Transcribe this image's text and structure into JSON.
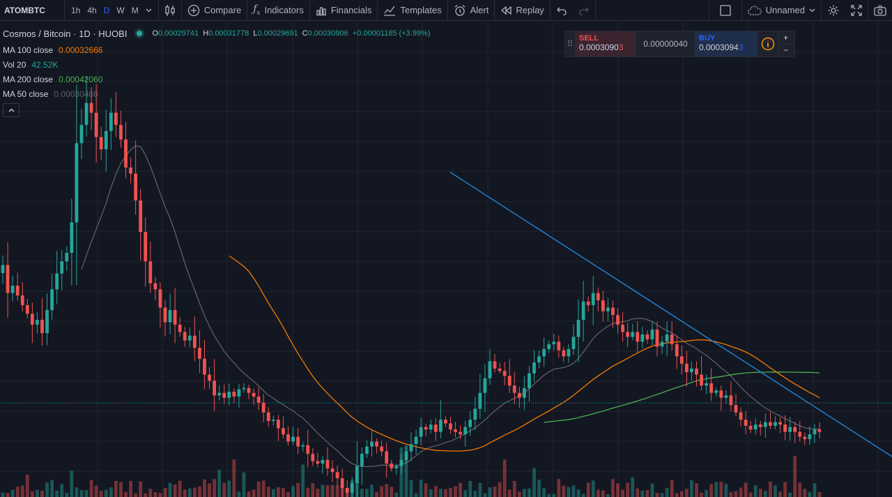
{
  "toolbar": {
    "symbol": "ATOMBTC",
    "intervals": [
      "1h",
      "4h",
      "D",
      "W",
      "M"
    ],
    "active_interval": "D",
    "compare_label": "Compare",
    "indicators_label": "Indicators",
    "financials_label": "Financials",
    "templates_label": "Templates",
    "alert_label": "Alert",
    "replay_label": "Replay",
    "layout_name": "Unnamed",
    "icons": [
      "chevron-down-icon",
      "candles-icon",
      "plus-circle-icon",
      "fx-icon",
      "financials-icon",
      "templates-icon",
      "alarm-clock-icon",
      "replay-icon",
      "undo-icon",
      "redo-icon",
      "square-icon",
      "cloud-icon",
      "gear-icon",
      "fullscreen-icon",
      "camera-icon"
    ]
  },
  "legend": {
    "title": "Cosmos / Bitcoin · 1D · HUOBI",
    "ohlc": {
      "o_label": "O",
      "o": "0.00029741",
      "h_label": "H",
      "h": "0.00031778",
      "l_label": "L",
      "l": "0.00029691",
      "c_label": "C",
      "c": "0.00030906",
      "change": "+0.00001185 (+3.99%)"
    },
    "indicators": [
      {
        "name": "MA 100 close",
        "value": "0.00032666",
        "color": "#f57c00"
      },
      {
        "name": "Vol 20",
        "value": "42.52K",
        "color": "#26a69a"
      },
      {
        "name": "MA 200 close",
        "value": "0.00042060",
        "color": "#4caf50"
      },
      {
        "name": "MA 50 close",
        "value": "0.00030408",
        "color": "#5d606b"
      }
    ]
  },
  "trade": {
    "sell_label": "SELL",
    "sell_price_main": "0.0003090",
    "sell_price_tail": "3",
    "spread": "0.00000040",
    "buy_label": "BUY",
    "buy_price_main": "0.0003094",
    "buy_price_tail": "3",
    "plus": "+",
    "minus": "−"
  },
  "colors": {
    "background": "#131722",
    "up": "#26a69a",
    "down": "#ef5350",
    "trendline": "#2196f3",
    "ma100": "#f57c00",
    "ma200": "#4caf50",
    "ma50": "#5d606b"
  },
  "chart_data": {
    "type": "candlestick",
    "closes": [
      0.000445,
      0.000422,
      0.000428,
      0.00042,
      0.000412,
      0.000405,
      0.000396,
      0.0004,
      0.000389,
      0.000408,
      0.000425,
      0.000438,
      0.000448,
      0.000455,
      0.00048,
      0.000545,
      0.00056,
      0.000578,
      0.00057,
      0.00055,
      0.00054,
      0.000555,
      0.00057,
      0.00056,
      0.000548,
      0.000525,
      0.00052,
      0.000498,
      0.000472,
      0.000448,
      0.00043,
      0.000425,
      0.00041,
      0.000398,
      0.000408,
      0.000396,
      0.00039,
      0.000383,
      0.000387,
      0.000377,
      0.000368,
      0.000355,
      0.00035,
      0.000338,
      0.00034,
      0.000336,
      0.000341,
      0.000337,
      0.000343,
      0.000344,
      0.00034,
      0.000337,
      0.000332,
      0.000324,
      0.000317,
      0.000318,
      0.000311,
      0.000306,
      0.0003,
      0.000304,
      0.000296,
      0.000297,
      0.00029,
      0.000284,
      0.000282,
      0.000285,
      0.000278,
      0.000275,
      0.00027,
      0.000262,
      0.000258,
      0.000266,
      0.00028,
      0.00029,
      0.000296,
      0.0003,
      0.000296,
      0.000292,
      0.000282,
      0.000278,
      0.00028,
      0.000285,
      0.000292,
      0.000298,
      0.000304,
      0.000312,
      0.00031,
      0.000314,
      0.000308,
      0.000318,
      0.000315,
      0.00031,
      0.000308,
      0.000306,
      0.000312,
      0.000318,
      0.000327,
      0.00034,
      0.000352,
      0.000366,
      0.00036,
      0.000358,
      0.000354,
      0.000346,
      0.00034,
      0.000336,
      0.000344,
      0.000356,
      0.000365,
      0.00037,
      0.000376,
      0.00038,
      0.000382,
      0.000375,
      0.00037,
      0.000376,
      0.000386,
      0.0004,
      0.000415,
      0.000412,
      0.000422,
      0.000416,
      0.000407,
      0.00041,
      0.000404,
      0.000396,
      0.00039,
      0.000386,
      0.00039,
      0.000382,
      0.000388,
      0.000384,
      0.000392,
      0.000378,
      0.000382,
      0.000388,
      0.00038,
      0.00037,
      0.000364,
      0.000357,
      0.00036,
      0.000355,
      0.000346,
      0.000348,
      0.00034,
      0.000342,
      0.000336,
      0.000338,
      0.00033,
      0.000324,
      0.000318,
      0.000313,
      0.00031,
      0.000314,
      0.000312,
      0.000316,
      0.000313,
      0.000316,
      0.000314,
      0.000308,
      0.000312,
      0.000308,
      0.000304,
      0.000302,
      0.000306,
      0.00031,
      0.000308
    ],
    "ma100_close": "0.00032666",
    "ma200_close": "0.00042060",
    "ma50_close": "0.00030408",
    "volume_last": "42.52K",
    "trendline": true,
    "grid": true
  }
}
